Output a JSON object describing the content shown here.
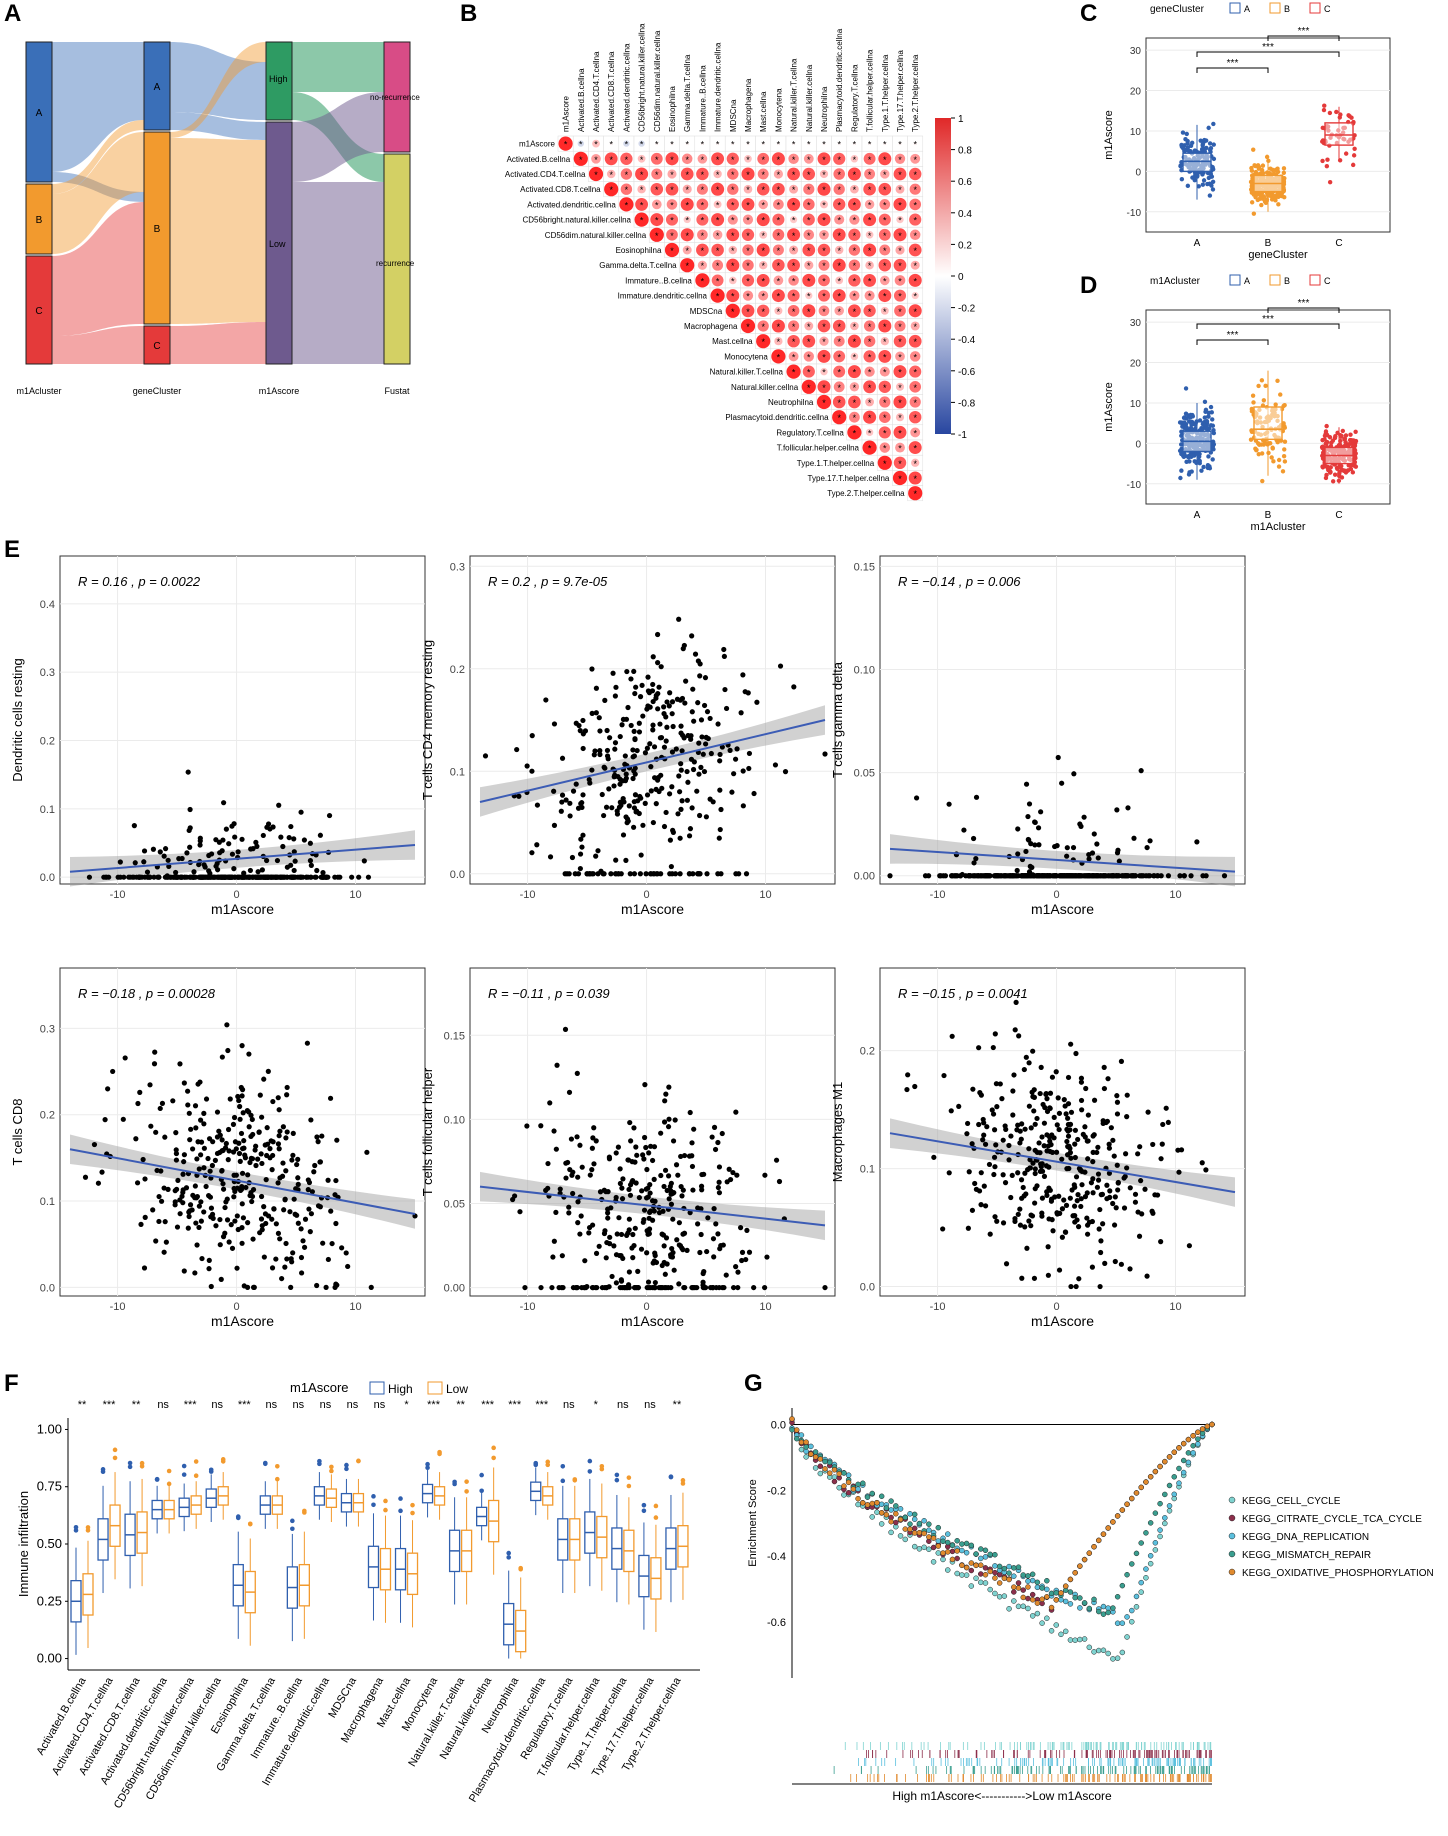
{
  "panel_labels": {
    "A": "A",
    "B": "B",
    "C": "C",
    "D": "D",
    "E": "E",
    "F": "F",
    "G": "G"
  },
  "sankey": {
    "axis_labels": [
      "m1Acluster",
      "geneCluster",
      "m1Ascore",
      "Fustat"
    ],
    "m1Acluster": [
      "A",
      "B",
      "C"
    ],
    "geneCluster": [
      "A",
      "B",
      "C"
    ],
    "m1Ascore": [
      "High",
      "Low"
    ],
    "fustat": [
      "no-recurrence",
      "recurrence"
    ],
    "colors": {
      "A": "#3A6FB8",
      "B": "#F29A2E",
      "C": "#E43A3A",
      "High": "#2E9B63",
      "Low": "#6E5A8E",
      "no_rec": "#D84C86",
      "rec": "#D3D064"
    }
  },
  "corr": {
    "labels": [
      "m1Ascore",
      "Activated.B.cellna",
      "Activated.CD4.T.cellna",
      "Activated.CD8.T.cellna",
      "Activated.dendritic.cellna",
      "CD56bright.natural.killer.cellna",
      "CD56dim.natural.killer.cellna",
      "Eosinophilna",
      "Gamma.delta.T.cellna",
      "Immature..B.cellna",
      "Immature.dendritic.cellna",
      "MDSCna",
      "Macrophagena",
      "Mast.cellna",
      "Monocytena",
      "Natural.killer.T.cellna",
      "Natural.killer.cellna",
      "Neutrophilna",
      "Plasmacytoid.dendritic.cellna",
      "Regulatory.T.cellna",
      "T.follicular.helper.cellna",
      "Type.1.T.helper.cellna",
      "Type.17.T.helper.cellna",
      "Type.2.T.helper.cellna"
    ],
    "colorbar_ticks": [
      "1",
      "0.8",
      "0.6",
      "0.4",
      "0.2",
      "0",
      "-0.2",
      "-0.4",
      "-0.6",
      "-0.8",
      "-1"
    ],
    "star": "*"
  },
  "box_c": {
    "legend_title": "geneCluster",
    "groups": [
      "A",
      "B",
      "C"
    ],
    "colors": [
      "#2F5FAE",
      "#F29A2E",
      "#E43A3A"
    ],
    "xlabel": "geneCluster",
    "ylabel": "m1Ascore",
    "yticks": [
      "30",
      "20",
      "10",
      "0",
      "-10"
    ],
    "medians": [
      2.5,
      -3,
      9
    ],
    "q1": [
      0,
      -5,
      6.5
    ],
    "q3": [
      4.5,
      -1,
      12
    ],
    "sig": [
      "***",
      "***",
      "***"
    ]
  },
  "box_d": {
    "legend_title": "m1Acluster",
    "groups": [
      "A",
      "B",
      "C"
    ],
    "colors": [
      "#2F5FAE",
      "#F29A2E",
      "#E43A3A"
    ],
    "xlabel": "m1Acluster",
    "ylabel": "m1Ascore",
    "yticks": [
      "30",
      "20",
      "10",
      "0",
      "-10"
    ],
    "medians": [
      0.5,
      3.5,
      -3
    ],
    "q1": [
      -2,
      1,
      -5
    ],
    "q3": [
      3,
      9,
      -1
    ],
    "sig": [
      "***",
      "***",
      "***"
    ]
  },
  "scatter": [
    {
      "stat": "R = 0.16 , p = 0.0022",
      "ylabel": "Dendritic cells resting",
      "xlabel": "m1Ascore",
      "yticks": [
        "0.0",
        "0.1",
        "0.2",
        "0.3",
        "0.4"
      ],
      "xticks": [
        "-10",
        "0",
        "10"
      ]
    },
    {
      "stat": "R = 0.2 , p = 9.7e-05",
      "ylabel": "T cells CD4 memory resting",
      "xlabel": "m1Ascore",
      "yticks": [
        "0.0",
        "0.1",
        "0.2",
        "0.3"
      ],
      "xticks": [
        "-10",
        "0",
        "10"
      ]
    },
    {
      "stat": "R = −0.14 , p = 0.006",
      "ylabel": "T cells gamma delta",
      "xlabel": "m1Ascore",
      "yticks": [
        "0.00",
        "0.05",
        "0.10",
        "0.15"
      ],
      "xticks": [
        "-10",
        "0",
        "10"
      ]
    },
    {
      "stat": "R = −0.18 , p = 0.00028",
      "ylabel": "T cells CD8",
      "xlabel": "m1Ascore",
      "yticks": [
        "0.0",
        "0.1",
        "0.2",
        "0.3"
      ],
      "xticks": [
        "-10",
        "0",
        "10"
      ]
    },
    {
      "stat": "R = −0.11 , p = 0.039",
      "ylabel": "T cells follicular helper",
      "xlabel": "m1Ascore",
      "yticks": [
        "0.00",
        "0.05",
        "0.10",
        "0.15"
      ],
      "xticks": [
        "-10",
        "0",
        "10"
      ]
    },
    {
      "stat": "R = −0.15 , p = 0.0041",
      "ylabel": "Macrophages M1",
      "xlabel": "m1Ascore",
      "yticks": [
        "0.0",
        "0.1",
        "0.2"
      ],
      "xticks": [
        "-10",
        "0",
        "10"
      ]
    }
  ],
  "box_f": {
    "legend_title": "m1Ascore",
    "legend": [
      "High",
      "Low"
    ],
    "colors": [
      "#2F5FAE",
      "#F29A2E"
    ],
    "ylabel": "Immune infiltration",
    "yticks": [
      "0.00",
      "0.25",
      "0.50",
      "0.75",
      "1.00"
    ],
    "cells": [
      "Activated.B.cellna",
      "Activated.CD4.T.cellna",
      "Activated.CD8.T.cellna",
      "Activated.dendritic.cellna",
      "CD56bright.natural.killer.cellna",
      "CD56dim.natural.killer.cellna",
      "Eosinophilna",
      "Gamma.delta.T.cellna",
      "Immature..B.cellna",
      "Immature.dendritic.cellna",
      "MDSCna",
      "Macrophagena",
      "Mast.cellna",
      "Monocytena",
      "Natural.killer.T.cellna",
      "Natural.killer.cellna",
      "Neutrophilna",
      "Plasmacytoid.dendritic.cellna",
      "Regulatory.T.cellna",
      "T.follicular.helper.cellna",
      "Type.1.T.helper.cellna",
      "Type.17.T.helper.cellna",
      "Type.2.T.helper.cellna"
    ],
    "sig": [
      "**",
      "***",
      "**",
      "ns",
      "***",
      "ns",
      "***",
      "ns",
      "ns",
      "ns",
      "ns",
      "ns",
      "*",
      "***",
      "**",
      "***",
      "***",
      "***",
      "ns",
      "*",
      "ns",
      "ns",
      "**"
    ],
    "high_median": [
      0.25,
      0.52,
      0.54,
      0.65,
      0.66,
      0.7,
      0.32,
      0.67,
      0.31,
      0.71,
      0.68,
      0.4,
      0.39,
      0.72,
      0.47,
      0.62,
      0.15,
      0.73,
      0.52,
      0.55,
      0.48,
      0.36,
      0.48
    ],
    "low_median": [
      0.28,
      0.58,
      0.55,
      0.65,
      0.67,
      0.71,
      0.29,
      0.67,
      0.32,
      0.7,
      0.68,
      0.39,
      0.37,
      0.71,
      0.47,
      0.6,
      0.12,
      0.71,
      0.52,
      0.53,
      0.47,
      0.35,
      0.49
    ]
  },
  "gsea": {
    "ylabel": "Enrichment Score",
    "yticks": [
      "0.0",
      "-0.2",
      "-0.4",
      "-0.6"
    ],
    "xlabel": "High m1Ascore<----------->Low m1Ascore",
    "sets": [
      "KEGG_CELL_CYCLE",
      "KEGG_CITRATE_CYCLE_TCA_CYCLE",
      "KEGG_DNA_REPLICATION",
      "KEGG_MISMATCH_REPAIR",
      "KEGG_OXIDATIVE_PHOSPHORYLATION"
    ],
    "colors": [
      "#7FD3D0",
      "#8C2F4B",
      "#5BC0DE",
      "#3A9E8F",
      "#E08A2E"
    ]
  },
  "chart_data": [
    {
      "type": "scatter",
      "title": "",
      "xlabel": "m1Ascore",
      "ylabel": "Dendritic cells resting",
      "annotation": "R = 0.16 , p = 0.0022",
      "fit": {
        "x": [
          -14,
          15
        ],
        "y": [
          0.008,
          0.047
        ]
      }
    },
    {
      "type": "scatter",
      "title": "",
      "xlabel": "m1Ascore",
      "ylabel": "T cells CD4 memory resting",
      "annotation": "R = 0.2 , p = 9.7e-05",
      "fit": {
        "x": [
          -14,
          15
        ],
        "y": [
          0.07,
          0.15
        ]
      }
    },
    {
      "type": "scatter",
      "title": "",
      "xlabel": "m1Ascore",
      "ylabel": "T cells gamma delta",
      "annotation": "R = −0.14 , p = 0.006",
      "fit": {
        "x": [
          -14,
          15
        ],
        "y": [
          0.013,
          0.002
        ]
      }
    },
    {
      "type": "scatter",
      "title": "",
      "xlabel": "m1Ascore",
      "ylabel": "T cells CD8",
      "annotation": "R = −0.18 , p = 0.00028",
      "fit": {
        "x": [
          -14,
          15
        ],
        "y": [
          0.16,
          0.085
        ]
      }
    },
    {
      "type": "scatter",
      "title": "",
      "xlabel": "m1Ascore",
      "ylabel": "T cells follicular helper",
      "annotation": "R = −0.11 , p = 0.039",
      "fit": {
        "x": [
          -14,
          15
        ],
        "y": [
          0.06,
          0.037
        ]
      }
    },
    {
      "type": "scatter",
      "title": "",
      "xlabel": "m1Ascore",
      "ylabel": "Macrophages M1",
      "annotation": "R = −0.15 , p = 0.0041",
      "fit": {
        "x": [
          -14,
          15
        ],
        "y": [
          0.13,
          0.08
        ]
      }
    }
  ]
}
